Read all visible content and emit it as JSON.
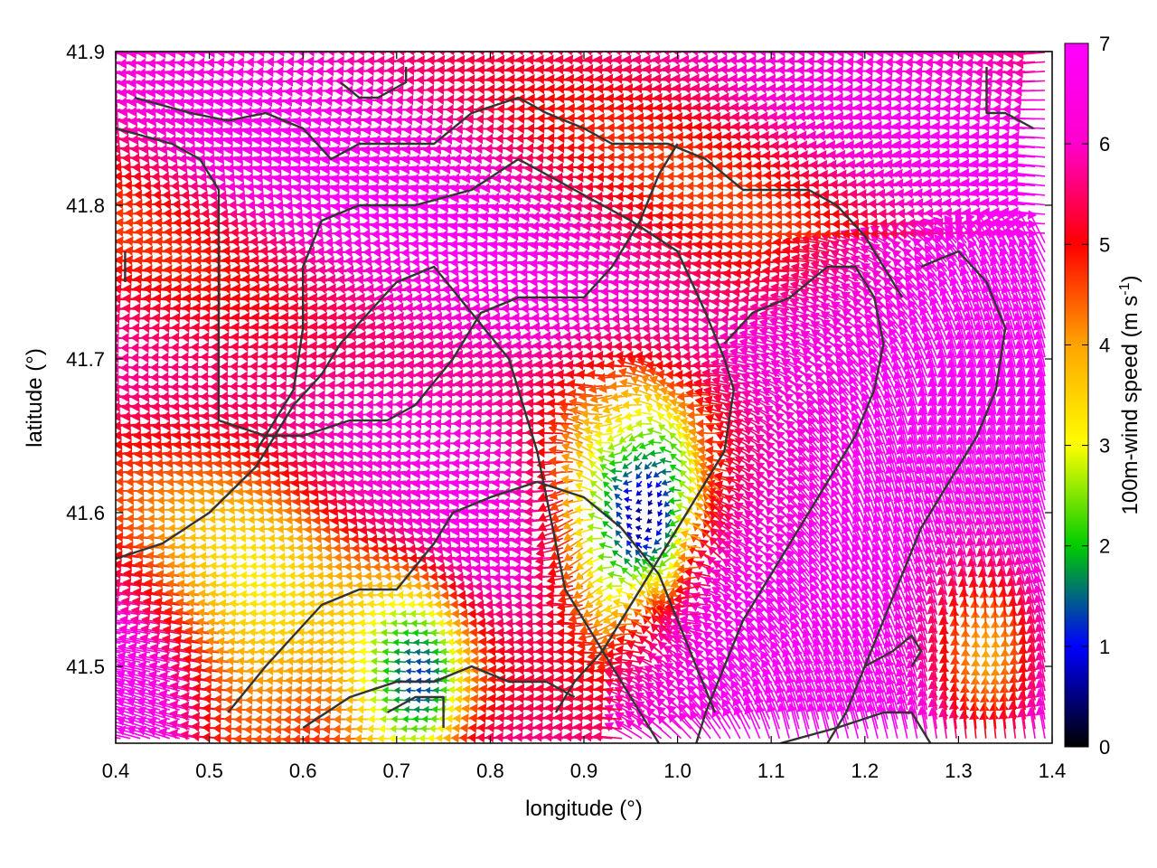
{
  "chart_data": {
    "type": "vector-field",
    "xlabel": "longitude (°)",
    "ylabel": "latitude (°)",
    "colorbar_label": "100m-wind speed (m s",
    "colorbar_label_sup": "-1",
    "colorbar_label_end": ")",
    "xlim": [
      0.4,
      1.4
    ],
    "ylim": [
      41.45,
      41.9
    ],
    "x_ticks": [
      "0.4",
      "0.5",
      "0.6",
      "0.7",
      "0.8",
      "0.9",
      "1.0",
      "1.1",
      "1.2",
      "1.3",
      "1.4"
    ],
    "y_ticks": [
      "41.5",
      "41.6",
      "41.7",
      "41.8",
      "41.9"
    ],
    "colorbar_range": [
      0,
      7
    ],
    "colorbar_ticks": [
      "0",
      "1",
      "2",
      "3",
      "4",
      "5",
      "6",
      "7"
    ],
    "colormap": [
      "#000000",
      "#0000ff",
      "#00cc00",
      "#ffff00",
      "#ffa500",
      "#ff0000",
      "#ff00ff"
    ],
    "grid": false,
    "legend": "colorbar-right",
    "borders": [
      [
        [
          0.42,
          41.87
        ],
        [
          0.48,
          41.86
        ],
        [
          0.52,
          41.855
        ],
        [
          0.56,
          41.86
        ],
        [
          0.6,
          41.85
        ],
        [
          0.63,
          41.83
        ],
        [
          0.66,
          41.84
        ],
        [
          0.7,
          41.84
        ],
        [
          0.74,
          41.84
        ],
        [
          0.78,
          41.86
        ],
        [
          0.83,
          41.87
        ],
        [
          0.86,
          41.86
        ],
        [
          0.9,
          41.85
        ],
        [
          0.93,
          41.84
        ],
        [
          0.96,
          41.84
        ],
        [
          0.99,
          41.84
        ],
        [
          1.03,
          41.83
        ],
        [
          1.07,
          41.81
        ],
        [
          1.1,
          41.81
        ],
        [
          1.14,
          41.81
        ],
        [
          1.17,
          41.8
        ],
        [
          1.2,
          41.78
        ],
        [
          1.22,
          41.76
        ],
        [
          1.24,
          41.74
        ]
      ],
      [
        [
          0.4,
          41.85
        ],
        [
          0.46,
          41.84
        ],
        [
          0.49,
          41.83
        ],
        [
          0.51,
          41.81
        ],
        [
          0.51,
          41.77
        ],
        [
          0.51,
          41.72
        ],
        [
          0.51,
          41.66
        ],
        [
          0.56,
          41.65
        ],
        [
          0.6,
          41.65
        ],
        [
          0.65,
          41.66
        ],
        [
          0.69,
          41.66
        ],
        [
          0.72,
          41.67
        ],
        [
          0.76,
          41.7
        ],
        [
          0.79,
          41.73
        ],
        [
          0.83,
          41.74
        ],
        [
          0.86,
          41.74
        ],
        [
          0.9,
          41.74
        ],
        [
          0.93,
          41.76
        ],
        [
          0.96,
          41.79
        ],
        [
          0.98,
          41.82
        ],
        [
          1.0,
          41.84
        ]
      ],
      [
        [
          0.41,
          41.77
        ],
        [
          0.41,
          41.75
        ]
      ],
      [
        [
          0.55,
          41.64
        ],
        [
          0.59,
          41.68
        ],
        [
          0.6,
          41.72
        ],
        [
          0.6,
          41.76
        ],
        [
          0.62,
          41.79
        ],
        [
          0.66,
          41.8
        ],
        [
          0.72,
          41.8
        ],
        [
          0.78,
          41.81
        ],
        [
          0.83,
          41.83
        ],
        [
          0.89,
          41.81
        ],
        [
          0.95,
          41.79
        ],
        [
          1.0,
          41.77
        ],
        [
          1.03,
          41.73
        ],
        [
          1.05,
          41.7
        ],
        [
          1.06,
          41.68
        ],
        [
          1.05,
          41.64
        ],
        [
          1.03,
          41.62
        ],
        [
          1.01,
          41.6
        ],
        [
          0.98,
          41.57
        ],
        [
          0.95,
          41.54
        ],
        [
          0.92,
          41.51
        ],
        [
          0.89,
          41.49
        ],
        [
          0.87,
          41.47
        ]
      ],
      [
        [
          0.4,
          41.57
        ],
        [
          0.45,
          41.58
        ],
        [
          0.5,
          41.6
        ],
        [
          0.55,
          41.63
        ],
        [
          0.59,
          41.67
        ],
        [
          0.62,
          41.69
        ],
        [
          0.64,
          41.71
        ],
        [
          0.67,
          41.73
        ],
        [
          0.7,
          41.75
        ],
        [
          0.74,
          41.76
        ],
        [
          0.78,
          41.73
        ],
        [
          0.82,
          41.7
        ],
        [
          0.84,
          41.66
        ],
        [
          0.85,
          41.64
        ],
        [
          0.86,
          41.61
        ],
        [
          0.87,
          41.58
        ],
        [
          0.88,
          41.55
        ],
        [
          0.9,
          41.53
        ],
        [
          0.92,
          41.51
        ],
        [
          0.94,
          41.49
        ],
        [
          0.96,
          41.47
        ],
        [
          0.98,
          41.45
        ]
      ],
      [
        [
          0.52,
          41.47
        ],
        [
          0.56,
          41.5
        ],
        [
          0.59,
          41.52
        ],
        [
          0.62,
          41.54
        ],
        [
          0.66,
          41.55
        ],
        [
          0.7,
          41.55
        ],
        [
          0.74,
          41.58
        ],
        [
          0.76,
          41.6
        ],
        [
          0.8,
          41.61
        ],
        [
          0.85,
          41.62
        ],
        [
          0.9,
          41.61
        ],
        [
          0.94,
          41.59
        ],
        [
          0.98,
          41.56
        ],
        [
          1.0,
          41.53
        ],
        [
          1.02,
          41.5
        ],
        [
          1.04,
          41.47
        ]
      ],
      [
        [
          1.05,
          41.71
        ],
        [
          1.08,
          41.73
        ],
        [
          1.12,
          41.74
        ],
        [
          1.16,
          41.76
        ],
        [
          1.19,
          41.76
        ],
        [
          1.21,
          41.74
        ],
        [
          1.22,
          41.71
        ],
        [
          1.21,
          41.68
        ],
        [
          1.19,
          41.65
        ],
        [
          1.16,
          41.62
        ],
        [
          1.13,
          41.59
        ],
        [
          1.1,
          41.56
        ],
        [
          1.07,
          41.53
        ],
        [
          1.05,
          41.5
        ],
        [
          1.03,
          41.47
        ],
        [
          1.02,
          41.45
        ]
      ],
      [
        [
          1.26,
          41.76
        ],
        [
          1.3,
          41.77
        ],
        [
          1.33,
          41.75
        ],
        [
          1.35,
          41.72
        ],
        [
          1.34,
          41.68
        ],
        [
          1.32,
          41.65
        ],
        [
          1.29,
          41.62
        ],
        [
          1.26,
          41.59
        ],
        [
          1.24,
          41.56
        ],
        [
          1.22,
          41.53
        ],
        [
          1.2,
          41.5
        ],
        [
          1.18,
          41.47
        ],
        [
          1.16,
          41.45
        ]
      ],
      [
        [
          1.2,
          41.5
        ],
        [
          1.23,
          41.51
        ],
        [
          1.25,
          41.52
        ],
        [
          1.26,
          41.51
        ],
        [
          1.25,
          41.5
        ]
      ],
      [
        [
          1.11,
          41.45
        ],
        [
          1.17,
          41.46
        ],
        [
          1.22,
          41.47
        ],
        [
          1.25,
          41.47
        ],
        [
          1.27,
          41.45
        ]
      ],
      [
        [
          1.33,
          41.89
        ],
        [
          1.33,
          41.86
        ],
        [
          1.35,
          41.86
        ],
        [
          1.38,
          41.85
        ]
      ],
      [
        [
          0.6,
          41.46
        ],
        [
          0.65,
          41.48
        ],
        [
          0.7,
          41.49
        ],
        [
          0.74,
          41.49
        ],
        [
          0.78,
          41.5
        ],
        [
          0.82,
          41.49
        ],
        [
          0.86,
          41.49
        ],
        [
          0.89,
          41.48
        ]
      ],
      [
        [
          0.69,
          41.47
        ],
        [
          0.72,
          41.48
        ],
        [
          0.75,
          41.48
        ],
        [
          0.75,
          41.46
        ]
      ],
      [
        [
          0.64,
          41.88
        ],
        [
          0.66,
          41.87
        ],
        [
          0.68,
          41.87
        ],
        [
          0.71,
          41.88
        ],
        [
          0.71,
          41.89
        ]
      ]
    ]
  }
}
